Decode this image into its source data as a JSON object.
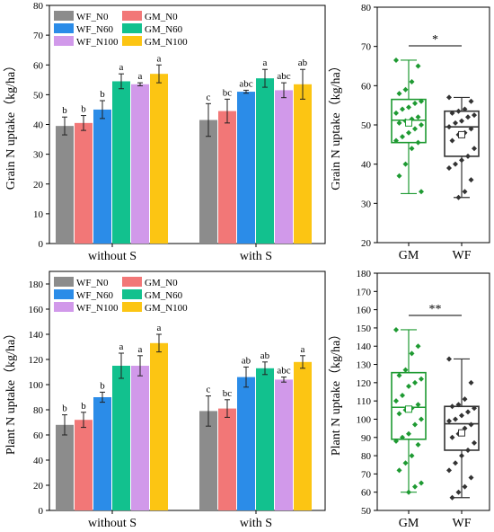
{
  "colors": {
    "WF_N0": "#8c8c8c",
    "GM_N0": "#f27777",
    "WF_N60": "#2b8ce8",
    "GM_N60": "#12c18e",
    "WF_N100": "#d199ea",
    "GM_N100": "#fcc513",
    "GM_box": "#1e9a32",
    "WF_box": "#333333"
  },
  "chart_data": [
    {
      "id": "grain-bar",
      "type": "bar",
      "ylabel": "Grain N uptake（kg/ha）",
      "ylim": [
        0,
        80
      ],
      "yticks": [
        0,
        10,
        20,
        30,
        40,
        50,
        60,
        70,
        80
      ],
      "categories": [
        "without S",
        "with S"
      ],
      "legend_placement": "top-left",
      "series": [
        {
          "name": "WF_N0",
          "values": [
            39.5,
            41.5
          ],
          "errors": [
            3.0,
            5.5
          ],
          "letters": [
            "b",
            "c"
          ]
        },
        {
          "name": "GM_N0",
          "values": [
            40.5,
            44.5
          ],
          "errors": [
            2.5,
            4.0
          ],
          "letters": [
            "b",
            "bc"
          ]
        },
        {
          "name": "WF_N60",
          "values": [
            45.0,
            51.0
          ],
          "errors": [
            3.0,
            0.5
          ],
          "letters": [
            "b",
            "abc"
          ]
        },
        {
          "name": "GM_N60",
          "values": [
            54.5,
            55.5
          ],
          "errors": [
            2.5,
            3.0
          ],
          "letters": [
            "a",
            "a"
          ]
        },
        {
          "name": "WF_N100",
          "values": [
            53.5,
            51.5
          ],
          "errors": [
            0.5,
            2.5
          ],
          "letters": [
            "a",
            "abc"
          ]
        },
        {
          "name": "GM_N100",
          "values": [
            57.0,
            53.5
          ],
          "errors": [
            3.0,
            5.0
          ],
          "letters": [
            "a",
            "ab"
          ]
        }
      ]
    },
    {
      "id": "plant-bar",
      "type": "bar",
      "ylabel": "Plant N uptake（kg/ha）",
      "ylim": [
        0,
        190
      ],
      "yticks": [
        0,
        20,
        40,
        60,
        80,
        100,
        120,
        140,
        160,
        180
      ],
      "categories": [
        "without S",
        "with S"
      ],
      "legend_placement": "top-left",
      "series": [
        {
          "name": "WF_N0",
          "values": [
            68,
            79
          ],
          "errors": [
            8,
            12
          ],
          "letters": [
            "b",
            "c"
          ]
        },
        {
          "name": "GM_N0",
          "values": [
            72,
            81
          ],
          "errors": [
            6,
            7
          ],
          "letters": [
            "b",
            "bc"
          ]
        },
        {
          "name": "WF_N60",
          "values": [
            90,
            106
          ],
          "errors": [
            4,
            8
          ],
          "letters": [
            "b",
            "ab"
          ]
        },
        {
          "name": "GM_N60",
          "values": [
            115,
            113
          ],
          "errors": [
            10,
            5
          ],
          "letters": [
            "a",
            "ab"
          ]
        },
        {
          "name": "WF_N100",
          "values": [
            115,
            104
          ],
          "errors": [
            8,
            2
          ],
          "letters": [
            "a",
            "abc"
          ]
        },
        {
          "name": "GM_N100",
          "values": [
            133,
            118
          ],
          "errors": [
            7,
            5
          ],
          "letters": [
            "a",
            "a"
          ]
        }
      ]
    },
    {
      "id": "grain-box",
      "type": "box",
      "ylabel": "Grain N uptake（kg/ha）",
      "ylim": [
        20,
        80
      ],
      "yticks": [
        20,
        30,
        40,
        50,
        60,
        70,
        80
      ],
      "significance": "*",
      "groups": [
        {
          "name": "GM",
          "whisker_low": 32.5,
          "q1": 45.5,
          "median": 51.2,
          "q3": 56.5,
          "whisker_high": 66.5,
          "mean": 50.5,
          "points": [
            66.5,
            65,
            61,
            59,
            58,
            56,
            55.5,
            54.5,
            54,
            53,
            52,
            51.5,
            51,
            50.5,
            50,
            49,
            48,
            47,
            46,
            45.5,
            44,
            40,
            37,
            33
          ]
        },
        {
          "name": "WF",
          "whisker_low": 31.5,
          "q1": 42.0,
          "median": 49.5,
          "q3": 53.5,
          "whisker_high": 57.0,
          "mean": 47.5,
          "points": [
            57,
            56,
            54,
            53.5,
            53,
            52.5,
            52,
            51,
            50.5,
            49.5,
            49,
            48,
            47.5,
            46,
            44,
            42,
            41,
            40,
            39,
            36,
            33,
            31.5
          ]
        }
      ]
    },
    {
      "id": "plant-box",
      "type": "box",
      "ylabel": "Plant N uptake（kg/ha）",
      "ylim": [
        50,
        180
      ],
      "yticks": [
        50,
        60,
        70,
        80,
        90,
        100,
        110,
        120,
        130,
        140,
        150,
        160,
        170,
        180
      ],
      "significance": "**",
      "groups": [
        {
          "name": "GM",
          "whisker_low": 60,
          "q1": 89,
          "median": 106.5,
          "q3": 125.5,
          "whisker_high": 149,
          "mean": 105.5,
          "points": [
            149,
            140,
            136,
            127,
            124,
            122,
            120,
            118,
            113,
            110,
            108,
            106,
            105,
            103,
            100,
            97,
            92,
            90,
            88,
            86,
            80,
            76,
            72,
            65,
            63,
            60
          ]
        },
        {
          "name": "WF",
          "whisker_low": 57,
          "q1": 83,
          "median": 97.5,
          "q3": 107,
          "whisker_high": 133,
          "mean": 92.5,
          "points": [
            133,
            120,
            111,
            108,
            107,
            106,
            104,
            102,
            100,
            99,
            97,
            95,
            92,
            90,
            87,
            83,
            80,
            76,
            72,
            68,
            63,
            60,
            57
          ]
        }
      ]
    }
  ]
}
